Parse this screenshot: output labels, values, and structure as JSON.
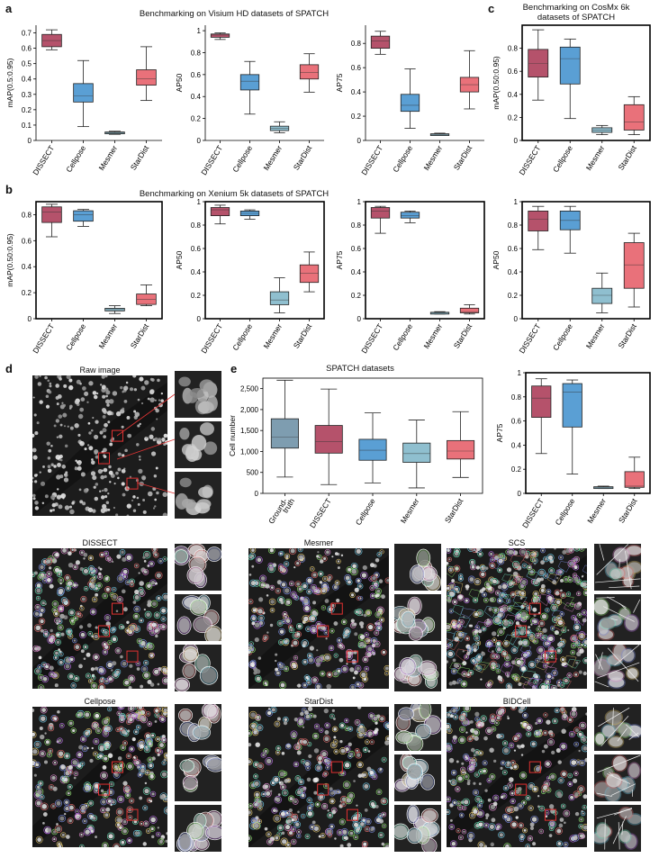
{
  "panel_letters": [
    "a",
    "b",
    "c",
    "d",
    "e"
  ],
  "titles": {
    "a": "Benchmarking on Visium HD datasets of SPATCH",
    "b": "Benchmarking on Xenium 5k datasets of SPATCH",
    "c": "Benchmarking on CosMx 6k datasets of SPATCH",
    "e": "SPATCH datasets"
  },
  "image_captions": {
    "raw": "Raw image",
    "dissect": "DISSECT",
    "mesmer": "Mesmer",
    "scs": "SCS",
    "cellpose": "Cellpose",
    "stardist": "StarDist",
    "bidcell": "BIDCell"
  },
  "colors": {
    "DISSECT": "#b5526b",
    "Cellpose": "#5a9fd4",
    "Mesmer": "#8fbfcf",
    "StarDist": "#e9717a",
    "Ground-truth": "#7e9db0"
  },
  "chart_data": [
    {
      "id": "a1",
      "type": "box",
      "categories": [
        "DISSECT",
        "Cellpose",
        "Mesmer",
        "StarDist"
      ],
      "ylabel": "mAP(0.5:0.95)",
      "ylim": [
        0,
        0.75
      ],
      "yticks": [
        0,
        0.1,
        0.2,
        0.3,
        0.4,
        0.5,
        0.6,
        0.7
      ],
      "frame": false,
      "boxes": [
        {
          "min": 0.59,
          "q1": 0.61,
          "median": 0.65,
          "q3": 0.69,
          "max": 0.72
        },
        {
          "min": 0.09,
          "q1": 0.25,
          "median": 0.29,
          "q3": 0.37,
          "max": 0.52
        },
        {
          "min": 0.04,
          "q1": 0.045,
          "median": 0.05,
          "q3": 0.055,
          "max": 0.06
        },
        {
          "min": 0.26,
          "q1": 0.36,
          "median": 0.4,
          "q3": 0.46,
          "max": 0.61
        }
      ]
    },
    {
      "id": "a2",
      "type": "box",
      "categories": [
        "DISSECT",
        "Cellpose",
        "Mesmer",
        "StarDist"
      ],
      "ylabel": "AP50",
      "ylim": [
        0,
        1.05
      ],
      "yticks": [
        0,
        0.2,
        0.4,
        0.6,
        0.8,
        1.0
      ],
      "frame": false,
      "boxes": [
        {
          "min": 0.92,
          "q1": 0.94,
          "median": 0.96,
          "q3": 0.97,
          "max": 0.98
        },
        {
          "min": 0.24,
          "q1": 0.46,
          "median": 0.54,
          "q3": 0.6,
          "max": 0.72
        },
        {
          "min": 0.07,
          "q1": 0.09,
          "median": 0.11,
          "q3": 0.13,
          "max": 0.17
        },
        {
          "min": 0.44,
          "q1": 0.56,
          "median": 0.62,
          "q3": 0.69,
          "max": 0.79
        }
      ]
    },
    {
      "id": "a3",
      "type": "box",
      "categories": [
        "DISSECT",
        "Cellpose",
        "Mesmer",
        "StarDist"
      ],
      "ylabel": "AP75",
      "ylim": [
        0,
        0.95
      ],
      "yticks": [
        0,
        0.2,
        0.4,
        0.6,
        0.8
      ],
      "frame": false,
      "boxes": [
        {
          "min": 0.71,
          "q1": 0.76,
          "median": 0.82,
          "q3": 0.86,
          "max": 0.9
        },
        {
          "min": 0.1,
          "q1": 0.24,
          "median": 0.29,
          "q3": 0.38,
          "max": 0.59
        },
        {
          "min": 0.04,
          "q1": 0.045,
          "median": 0.05,
          "q3": 0.055,
          "max": 0.06
        },
        {
          "min": 0.26,
          "q1": 0.4,
          "median": 0.46,
          "q3": 0.52,
          "max": 0.74
        }
      ]
    },
    {
      "id": "c1",
      "type": "box",
      "categories": [
        "DISSECT",
        "Cellpose",
        "Mesmer",
        "StarDist"
      ],
      "ylabel": "mAP(0.50:0.95)",
      "ylim": [
        0,
        1.0
      ],
      "yticks": [
        0,
        0.2,
        0.4,
        0.6,
        0.8
      ],
      "frame": true,
      "boxes": [
        {
          "min": 0.35,
          "q1": 0.55,
          "median": 0.67,
          "q3": 0.79,
          "max": 0.96
        },
        {
          "min": 0.19,
          "q1": 0.49,
          "median": 0.71,
          "q3": 0.81,
          "max": 0.88
        },
        {
          "min": 0.05,
          "q1": 0.07,
          "median": 0.09,
          "q3": 0.11,
          "max": 0.13
        },
        {
          "min": 0.05,
          "q1": 0.09,
          "median": 0.16,
          "q3": 0.31,
          "max": 0.38
        }
      ]
    },
    {
      "id": "b1",
      "type": "box",
      "categories": [
        "DISSECT",
        "Cellpose",
        "Mesmer",
        "StarDist"
      ],
      "ylabel": "mAP(0.50:0.95)",
      "ylim": [
        0,
        0.9
      ],
      "yticks": [
        0,
        0.2,
        0.4,
        0.6,
        0.8
      ],
      "frame": true,
      "boxes": [
        {
          "min": 0.63,
          "q1": 0.74,
          "median": 0.82,
          "q3": 0.86,
          "max": 0.88
        },
        {
          "min": 0.71,
          "q1": 0.75,
          "median": 0.8,
          "q3": 0.83,
          "max": 0.84
        },
        {
          "min": 0.04,
          "q1": 0.06,
          "median": 0.07,
          "q3": 0.08,
          "max": 0.1
        },
        {
          "min": 0.1,
          "q1": 0.11,
          "median": 0.15,
          "q3": 0.19,
          "max": 0.26
        }
      ]
    },
    {
      "id": "b2",
      "type": "box",
      "categories": [
        "DISSECT",
        "Cellpose",
        "Mesmer",
        "StarDist"
      ],
      "ylabel": "AP50",
      "ylim": [
        0,
        1.0
      ],
      "yticks": [
        0,
        0.2,
        0.4,
        0.6,
        0.8,
        1.0
      ],
      "frame": true,
      "boxes": [
        {
          "min": 0.81,
          "q1": 0.88,
          "median": 0.93,
          "q3": 0.95,
          "max": 0.97
        },
        {
          "min": 0.85,
          "q1": 0.88,
          "median": 0.9,
          "q3": 0.92,
          "max": 0.93
        },
        {
          "min": 0.05,
          "q1": 0.12,
          "median": 0.16,
          "q3": 0.23,
          "max": 0.35
        },
        {
          "min": 0.23,
          "q1": 0.31,
          "median": 0.39,
          "q3": 0.46,
          "max": 0.57
        }
      ]
    },
    {
      "id": "b3",
      "type": "box",
      "categories": [
        "DISSECT",
        "Cellpose",
        "Mesmer",
        "StarDist"
      ],
      "ylabel": "AP75",
      "ylim": [
        0,
        1.0
      ],
      "yticks": [
        0,
        0.2,
        0.4,
        0.6,
        0.8,
        1.0
      ],
      "frame": true,
      "boxes": [
        {
          "min": 0.73,
          "q1": 0.86,
          "median": 0.92,
          "q3": 0.95,
          "max": 0.96
        },
        {
          "min": 0.82,
          "q1": 0.86,
          "median": 0.88,
          "q3": 0.91,
          "max": 0.92
        },
        {
          "min": 0.04,
          "q1": 0.045,
          "median": 0.05,
          "q3": 0.055,
          "max": 0.06
        },
        {
          "min": 0.04,
          "q1": 0.05,
          "median": 0.06,
          "q3": 0.09,
          "max": 0.12
        }
      ]
    },
    {
      "id": "b4",
      "type": "box",
      "categories": [
        "DISSECT",
        "Cellpose",
        "Mesmer",
        "StarDist"
      ],
      "ylabel": "AP50",
      "ylim": [
        0,
        1.0
      ],
      "yticks": [
        0,
        0.2,
        0.4,
        0.6,
        0.8,
        1.0
      ],
      "frame": true,
      "boxes": [
        {
          "min": 0.59,
          "q1": 0.75,
          "median": 0.85,
          "q3": 0.92,
          "max": 0.96
        },
        {
          "min": 0.56,
          "q1": 0.76,
          "median": 0.84,
          "q3": 0.92,
          "max": 0.96
        },
        {
          "min": 0.05,
          "q1": 0.13,
          "median": 0.2,
          "q3": 0.26,
          "max": 0.39
        },
        {
          "min": 0.1,
          "q1": 0.26,
          "median": 0.46,
          "q3": 0.65,
          "max": 0.73
        }
      ]
    },
    {
      "id": "e1",
      "type": "box",
      "categories": [
        "Ground-\ntruth",
        "DISSECT",
        "Cellpose",
        "Mesmer",
        "StarDist"
      ],
      "ylabel": "Cell number",
      "ylim": [
        0,
        2750
      ],
      "yticks": [
        0,
        500,
        1000,
        1500,
        2000,
        2500
      ],
      "ytick_labels": [
        "0",
        "500",
        "1,000",
        "1,500",
        "2,000",
        "2,500"
      ],
      "frame": true,
      "wide": true,
      "boxes": [
        {
          "min": 390,
          "q1": 1080,
          "median": 1340,
          "q3": 1780,
          "max": 2700
        },
        {
          "min": 210,
          "q1": 960,
          "median": 1240,
          "q3": 1620,
          "max": 2490
        },
        {
          "min": 250,
          "q1": 790,
          "median": 1030,
          "q3": 1290,
          "max": 1920
        },
        {
          "min": 130,
          "q1": 740,
          "median": 950,
          "q3": 1200,
          "max": 1750
        },
        {
          "min": 380,
          "q1": 820,
          "median": 1010,
          "q3": 1260,
          "max": 1950
        }
      ]
    },
    {
      "id": "e2",
      "type": "box",
      "categories": [
        "DISSECT",
        "Cellpose",
        "Mesmer",
        "StarDist"
      ],
      "ylabel": "AP75",
      "ylim": [
        0,
        1.0
      ],
      "yticks": [
        0,
        0.2,
        0.4,
        0.6,
        0.8,
        1.0
      ],
      "frame": true,
      "boxes": [
        {
          "min": 0.33,
          "q1": 0.63,
          "median": 0.79,
          "q3": 0.89,
          "max": 0.95
        },
        {
          "min": 0.16,
          "q1": 0.55,
          "median": 0.84,
          "q3": 0.91,
          "max": 0.94
        },
        {
          "min": 0.04,
          "q1": 0.045,
          "median": 0.05,
          "q3": 0.055,
          "max": 0.06
        },
        {
          "min": 0.04,
          "q1": 0.05,
          "median": 0.06,
          "q3": 0.18,
          "max": 0.3
        }
      ]
    }
  ]
}
